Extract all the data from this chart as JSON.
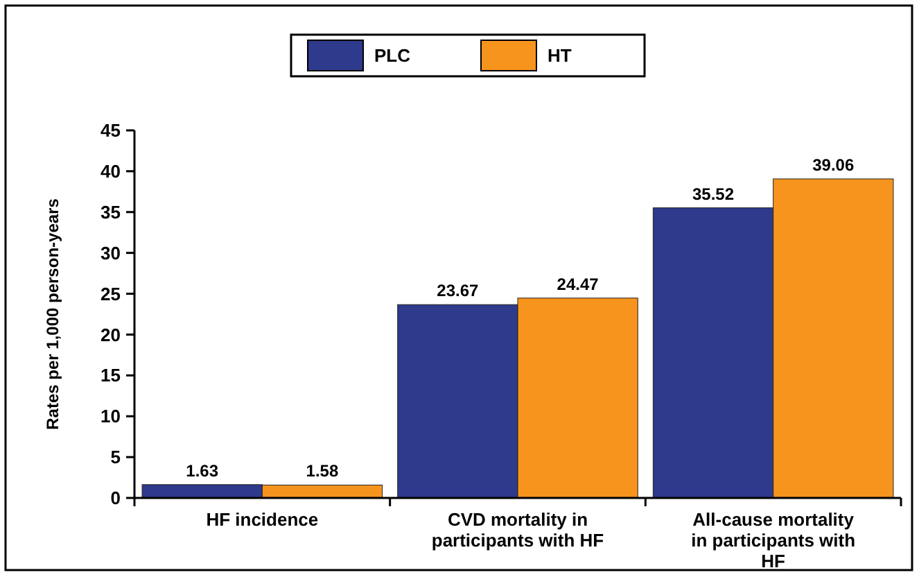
{
  "chart_data": {
    "type": "bar",
    "ylabel": "Rates per 1,000 person-years",
    "categories": [
      "HF incidence",
      "CVD mortality in participants with HF",
      "All-cause mortality in participants with HF"
    ],
    "series": [
      {
        "name": "PLC",
        "color": "#2e3a8c",
        "values": [
          1.63,
          23.67,
          35.52
        ]
      },
      {
        "name": "HT",
        "color": "#f7941d",
        "values": [
          1.58,
          24.47,
          39.06
        ]
      }
    ],
    "ylim": [
      0,
      45
    ],
    "yticks": [
      0,
      5,
      10,
      15,
      20,
      25,
      30,
      35,
      40,
      45
    ],
    "grid": false,
    "legend": "top",
    "data_labels": true
  }
}
